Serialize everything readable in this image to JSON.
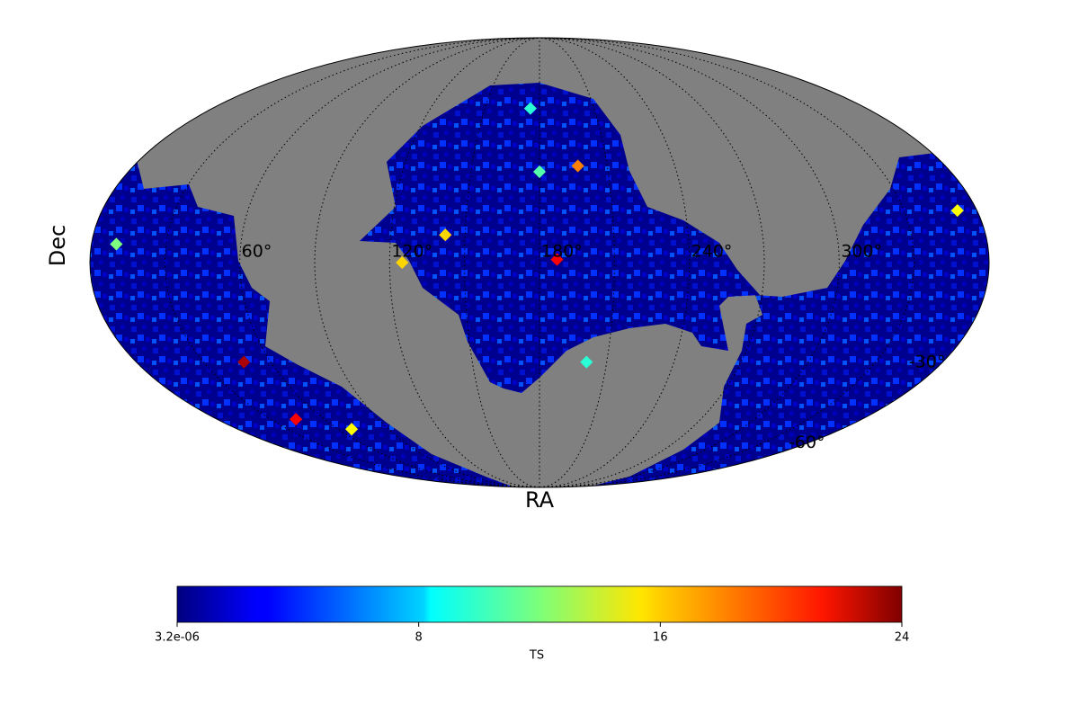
{
  "chart_data": {
    "type": "mollweide",
    "xlabel": "RA",
    "ylabel": "Dec",
    "xticks": [
      {
        "value": 300,
        "label": "300°"
      },
      {
        "value": 240,
        "label": "240°"
      },
      {
        "value": 180,
        "label": "180°"
      },
      {
        "value": 120,
        "label": "120°"
      },
      {
        "value": 60,
        "label": "60°"
      }
    ],
    "xgrid": [
      30,
      90,
      150,
      210,
      270,
      330
    ],
    "yticks": [
      {
        "value": -30,
        "label": "-30°"
      },
      {
        "value": -60,
        "label": "-60°"
      }
    ],
    "ygrid": [
      0,
      30,
      60
    ],
    "grid": true,
    "background_color": "#808080",
    "colormap": "jet",
    "colorbar_label": "TS",
    "clim": [
      3.2e-06,
      24
    ],
    "colorbar_ticks": [
      {
        "value": 3.2e-06,
        "label": "3.2e-06"
      },
      8,
      16,
      24
    ],
    "hotspots": {
      "ra": [
        187,
        197,
        48,
        44,
        142,
        10,
        175,
        352,
        125,
        180,
        201,
        68
      ],
      "dec": [
        1,
        32,
        -33,
        -54,
        9,
        6,
        53,
        17,
        0,
        30,
        -33,
        -58
      ],
      "ts": [
        21,
        18,
        23,
        21,
        16,
        12,
        10,
        15,
        16,
        11,
        10,
        15
      ]
    }
  }
}
